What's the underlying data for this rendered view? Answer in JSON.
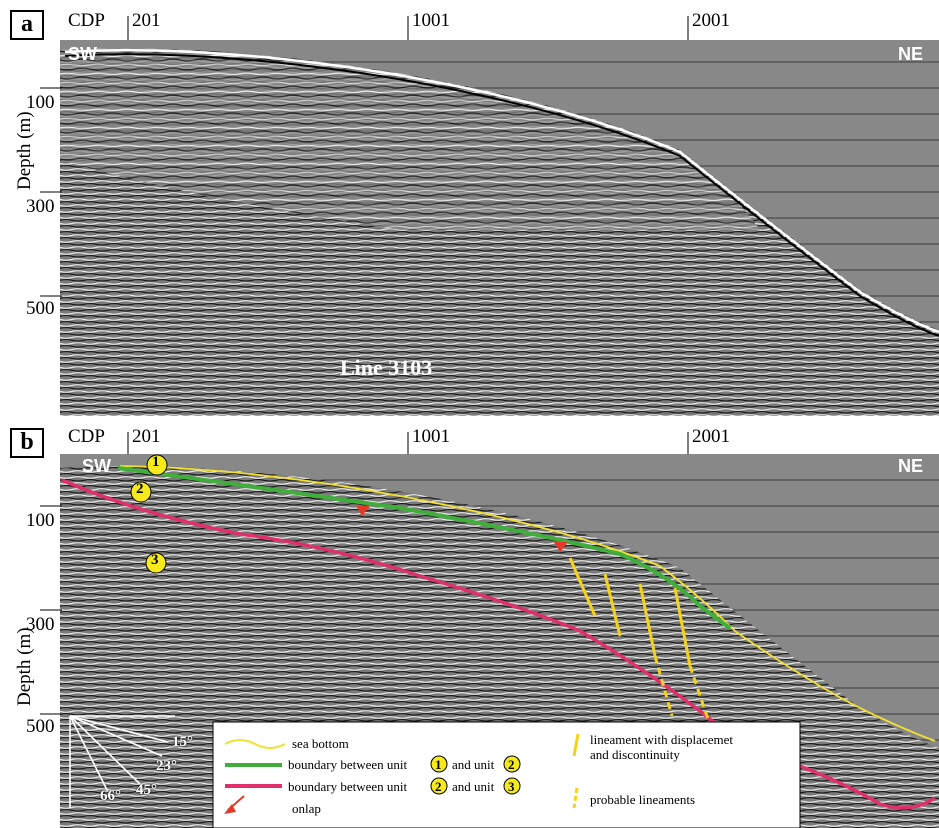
{
  "panels": [
    {
      "label": "a",
      "cdp_label": "CDP",
      "cdp_ticks": [
        "201",
        "1001",
        "2001"
      ],
      "depth_label": "Depth (m)",
      "depth_ticks": [
        "100",
        "300",
        "500"
      ],
      "left_dir": "SW",
      "right_dir": "NE",
      "line_title": "Line 3103"
    },
    {
      "label": "b",
      "cdp_label": "CDP",
      "cdp_ticks": [
        "201",
        "1001",
        "2001"
      ],
      "depth_label": "Depth (m)",
      "depth_ticks": [
        "100",
        "300",
        "500"
      ],
      "left_dir": "SW",
      "right_dir": "NE",
      "unit_markers": [
        "1",
        "2",
        "3"
      ]
    }
  ],
  "legend": {
    "sea_bottom": "sea bottom",
    "boundary_12_a": "boundary between unit",
    "boundary_12_b": "and unit",
    "boundary_23_a": "boundary between unit",
    "boundary_23_b": "and unit",
    "onlap": "onlap",
    "lineament": "lineament with displacemet",
    "lineament2": "and discontinuity",
    "probable": "probable lineaments",
    "u1": "1",
    "u2": "2",
    "u2b": "2",
    "u3": "3"
  },
  "angles": [
    "15°",
    "23°",
    "45°",
    "66°"
  ],
  "colors": {
    "sea_bottom": "#f2e030",
    "boundary_12": "#3fae3a",
    "boundary_23": "#e0306a",
    "onlap": "#e23a2a",
    "lineament": "#f5d21c",
    "marker_fill": "#f7ea1a"
  }
}
